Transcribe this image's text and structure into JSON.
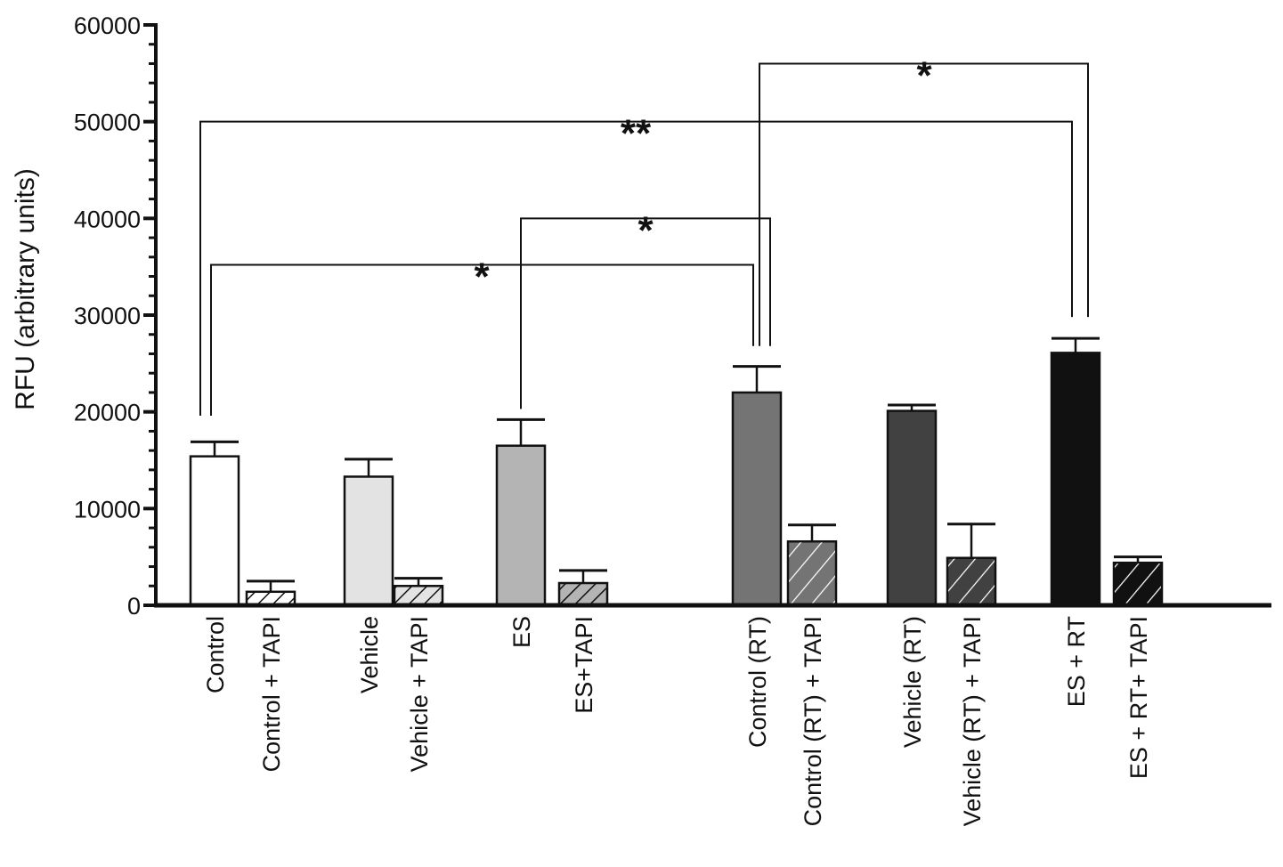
{
  "chart_data": {
    "type": "bar",
    "title": "",
    "xlabel": "",
    "ylabel": "RFU (arbitrary units)",
    "ylim": [
      0,
      60000
    ],
    "yticks": [
      0,
      10000,
      20000,
      30000,
      40000,
      50000,
      60000
    ],
    "ytick_labels": [
      "0",
      "10000",
      "20000",
      "30000",
      "40000",
      "50000",
      "60000"
    ],
    "grid": false,
    "categories": [
      "Control",
      "Control + TAPI",
      "Vehicle",
      "Vehicle + TAPI",
      "ES",
      "ES+TAPI",
      "Control (RT)",
      "Control (RT) + TAPI",
      "Vehicle (RT)",
      "Vehicle (RT) + TAPI",
      "ES + RT",
      "ES + RT+ TAPI"
    ],
    "values": [
      15400,
      1400,
      13300,
      2000,
      16500,
      2300,
      22000,
      6600,
      20100,
      4900,
      26100,
      4400
    ],
    "error_upper": [
      16900,
      2500,
      15100,
      2800,
      19200,
      3600,
      24700,
      8300,
      20700,
      8400,
      27600,
      5000
    ],
    "fills": [
      "#ffffff",
      "#ffffff",
      "#e3e3e3",
      "#e3e3e3",
      "#b4b4b4",
      "#b4b4b4",
      "#747474",
      "#747474",
      "#414141",
      "#414141",
      "#111111",
      "#111111"
    ],
    "hatched": [
      false,
      true,
      false,
      true,
      false,
      true,
      false,
      true,
      false,
      true,
      false,
      true
    ],
    "significance": [
      {
        "from": 0,
        "to": 6,
        "level": 35200,
        "label": "*",
        "from_bottom": 19600,
        "to_bottom": 26800
      },
      {
        "from": 4,
        "to": 6,
        "level": 40000,
        "label": "*",
        "from_bottom": 20300,
        "to_bottom": 26800
      },
      {
        "from": 0,
        "to": 10,
        "level": 50000,
        "label": "**",
        "from_bottom": 19600,
        "to_bottom": 29800
      },
      {
        "from": 6,
        "to": 10,
        "level": 56000,
        "label": "*",
        "from_bottom": 26800,
        "to_bottom": 29800
      }
    ]
  }
}
